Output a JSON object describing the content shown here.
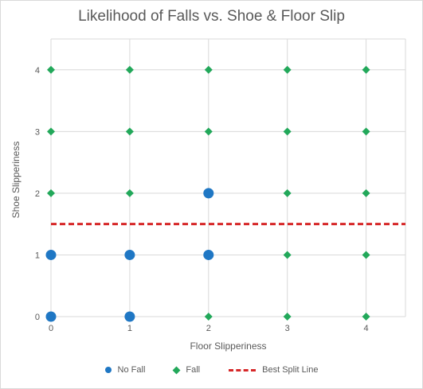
{
  "chart_data": {
    "type": "scatter",
    "title": "Likelihood of Falls vs. Shoe & Floor Slip",
    "xlabel": "Floor Slipperiness",
    "ylabel": "Shoe Slipperiness",
    "xlim": [
      0,
      4.5
    ],
    "ylim": [
      0,
      4.5
    ],
    "xticks": [
      0,
      1,
      2,
      3,
      4
    ],
    "yticks": [
      0,
      1,
      2,
      3,
      4
    ],
    "grid": true,
    "legend_position": "bottom",
    "series": [
      {
        "name": "No Fall",
        "marker": "circle",
        "color": "#1f77c4",
        "points": [
          [
            0,
            0
          ],
          [
            1,
            0
          ],
          [
            0,
            1
          ],
          [
            1,
            1
          ],
          [
            2,
            1
          ],
          [
            2,
            2
          ]
        ]
      },
      {
        "name": "Fall",
        "marker": "diamond",
        "color": "#22a85a",
        "points": [
          [
            2,
            0
          ],
          [
            3,
            0
          ],
          [
            4,
            0
          ],
          [
            3,
            1
          ],
          [
            4,
            1
          ],
          [
            0,
            2
          ],
          [
            1,
            2
          ],
          [
            3,
            2
          ],
          [
            4,
            2
          ],
          [
            0,
            3
          ],
          [
            1,
            3
          ],
          [
            2,
            3
          ],
          [
            3,
            3
          ],
          [
            4,
            3
          ],
          [
            0,
            4
          ],
          [
            1,
            4
          ],
          [
            2,
            4
          ],
          [
            3,
            4
          ],
          [
            4,
            4
          ]
        ]
      }
    ],
    "split_line": {
      "name": "Best Split Line",
      "y": 1.5,
      "color": "#d62728",
      "style": "dashed"
    }
  }
}
